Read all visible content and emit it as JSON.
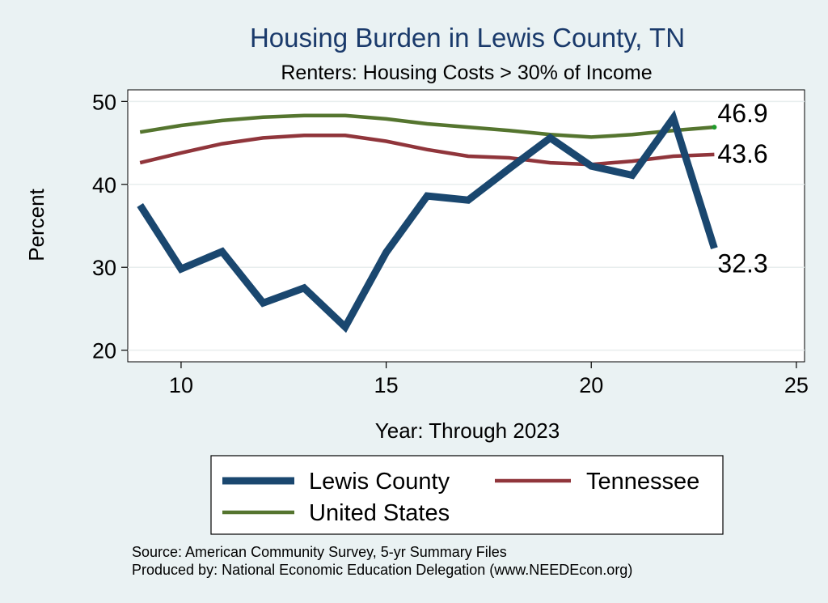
{
  "chart_data": {
    "type": "line",
    "title": "Housing Burden in Lewis County, TN",
    "subtitle": "Renters: Housing Costs > 30% of Income",
    "xlabel": "Year: Through 2023",
    "ylabel": "Percent",
    "xlim": [
      8.7,
      25.2
    ],
    "ylim": [
      18.6,
      51.4
    ],
    "xticks": [
      "10",
      "15",
      "20",
      "25"
    ],
    "yticks": [
      "20",
      "30",
      "40",
      "50"
    ],
    "x": [
      9,
      10,
      11,
      12,
      13,
      14,
      15,
      16,
      17,
      18,
      19,
      20,
      21,
      22,
      23
    ],
    "series": [
      {
        "name": "Lewis County",
        "color": "#1a476f",
        "values": [
          37.5,
          29.8,
          31.9,
          25.7,
          27.5,
          22.8,
          31.8,
          38.6,
          38.1,
          41.9,
          45.6,
          42.2,
          41.1,
          48.0,
          32.3
        ],
        "end_label": "32.3"
      },
      {
        "name": "Tennessee",
        "color": "#90353b",
        "values": [
          42.6,
          43.8,
          44.9,
          45.6,
          45.9,
          45.9,
          45.2,
          44.2,
          43.4,
          43.2,
          42.6,
          42.4,
          42.8,
          43.4,
          43.6
        ],
        "end_label": "43.6"
      },
      {
        "name": "United States",
        "color": "#55752f",
        "values": [
          46.3,
          47.1,
          47.7,
          48.1,
          48.3,
          48.3,
          47.9,
          47.3,
          46.9,
          46.5,
          46.0,
          45.7,
          46.0,
          46.5,
          46.9
        ],
        "end_label": "46.9"
      }
    ],
    "legend": {
      "position": "bottom",
      "entries": [
        "Lewis County",
        "Tennessee",
        "United States"
      ]
    },
    "notes": [
      "Source: American Community Survey, 5-yr Summary Files",
      "Produced by: National Economic Education Delegation (www.NEEDEcon.org)"
    ]
  }
}
